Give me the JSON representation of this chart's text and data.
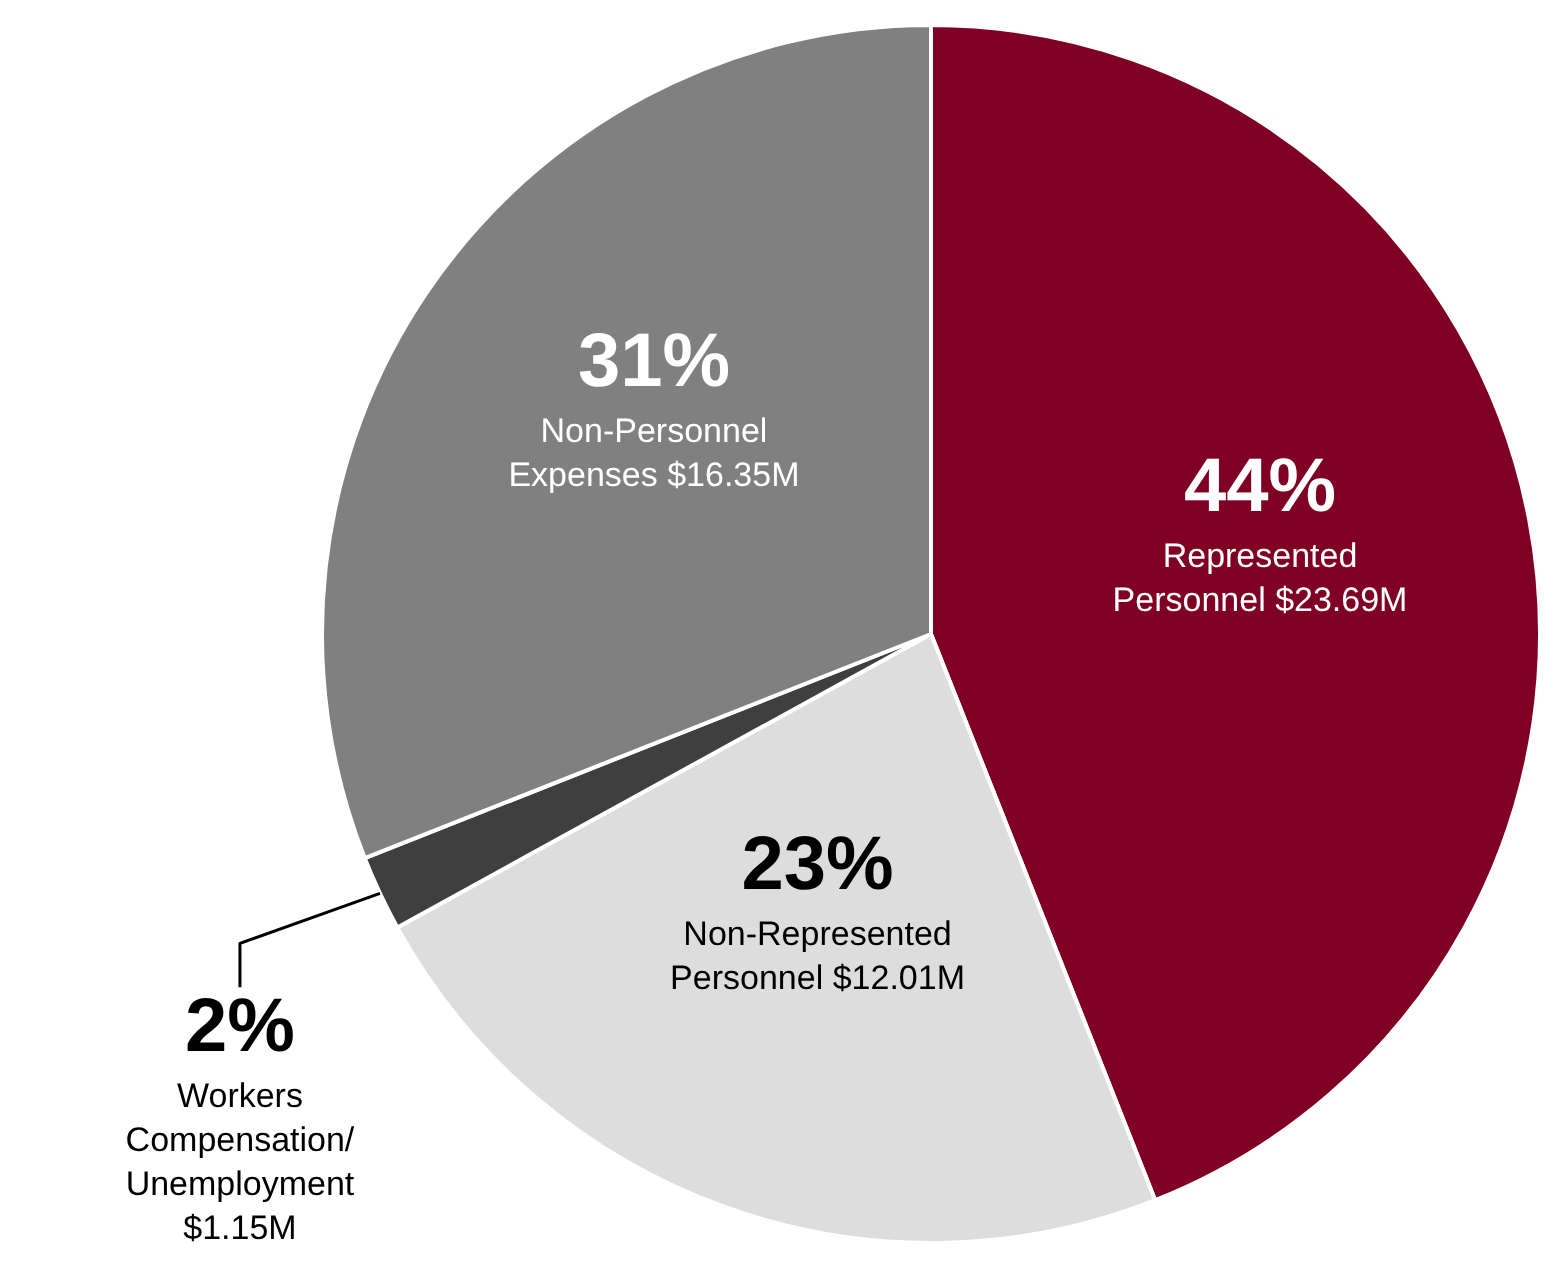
{
  "chart_data": {
    "type": "pie",
    "categories": [
      "Represented Personnel $23.69M",
      "Non-Represented Personnel $12.01M",
      "Workers Compensation/ Unemployment $1.15M",
      "Non-Personnel Expenses $16.35M"
    ],
    "values": [
      44,
      23,
      2,
      31
    ],
    "value_labels": [
      "44%",
      "23%",
      "2%",
      "31%"
    ],
    "colors": [
      "#7f0022",
      "#dddddd",
      "#3f3f3f",
      "#808080"
    ],
    "legend": false
  }
}
